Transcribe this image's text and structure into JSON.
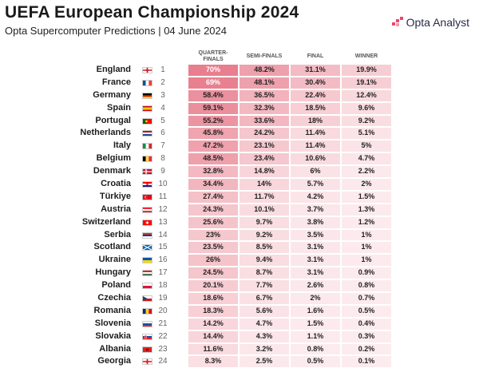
{
  "header": {
    "title": "UEFA European Championship 2024",
    "subtitle": "Opta Supercomputer Predictions | 04 June 2024",
    "brand": "Opta Analyst"
  },
  "colors": {
    "cell_max": "#e87e8e",
    "cell_min": "#fcecee",
    "text_light": "#ffffff",
    "text_dark": "#222222"
  },
  "chart_data": {
    "type": "table",
    "columns": [
      "QUARTER-FINALS",
      "SEMI-FINALS",
      "FINAL",
      "WINNER"
    ],
    "rows": [
      {
        "team": "England",
        "rank": "1",
        "flag": "england",
        "values": [
          "70%",
          "48.2%",
          "31.1%",
          "19.9%"
        ]
      },
      {
        "team": "France",
        "rank": "2",
        "flag": "france",
        "values": [
          "69%",
          "48.1%",
          "30.4%",
          "19.1%"
        ]
      },
      {
        "team": "Germany",
        "rank": "3",
        "flag": "germany",
        "values": [
          "58.4%",
          "36.5%",
          "22.4%",
          "12.4%"
        ]
      },
      {
        "team": "Spain",
        "rank": "4",
        "flag": "spain",
        "values": [
          "59.1%",
          "32.3%",
          "18.5%",
          "9.6%"
        ]
      },
      {
        "team": "Portugal",
        "rank": "5",
        "flag": "portugal",
        "values": [
          "55.2%",
          "33.6%",
          "18%",
          "9.2%"
        ]
      },
      {
        "team": "Netherlands",
        "rank": "6",
        "flag": "netherlands",
        "values": [
          "45.8%",
          "24.2%",
          "11.4%",
          "5.1%"
        ]
      },
      {
        "team": "Italy",
        "rank": "7",
        "flag": "italy",
        "values": [
          "47.2%",
          "23.1%",
          "11.4%",
          "5%"
        ]
      },
      {
        "team": "Belgium",
        "rank": "8",
        "flag": "belgium",
        "values": [
          "48.5%",
          "23.4%",
          "10.6%",
          "4.7%"
        ]
      },
      {
        "team": "Denmark",
        "rank": "9",
        "flag": "denmark",
        "values": [
          "32.8%",
          "14.8%",
          "6%",
          "2.2%"
        ]
      },
      {
        "team": "Croatia",
        "rank": "10",
        "flag": "croatia",
        "values": [
          "34.4%",
          "14%",
          "5.7%",
          "2%"
        ]
      },
      {
        "team": "Türkiye",
        "rank": "11",
        "flag": "turkiye",
        "values": [
          "27.4%",
          "11.7%",
          "4.2%",
          "1.5%"
        ]
      },
      {
        "team": "Austria",
        "rank": "12",
        "flag": "austria",
        "values": [
          "24.3%",
          "10.1%",
          "3.7%",
          "1.3%"
        ]
      },
      {
        "team": "Switzerland",
        "rank": "13",
        "flag": "switzerland",
        "values": [
          "25.6%",
          "9.7%",
          "3.8%",
          "1.2%"
        ]
      },
      {
        "team": "Serbia",
        "rank": "14",
        "flag": "serbia",
        "values": [
          "23%",
          "9.2%",
          "3.5%",
          "1%"
        ]
      },
      {
        "team": "Scotland",
        "rank": "15",
        "flag": "scotland",
        "values": [
          "23.5%",
          "8.5%",
          "3.1%",
          "1%"
        ]
      },
      {
        "team": "Ukraine",
        "rank": "16",
        "flag": "ukraine",
        "values": [
          "26%",
          "9.4%",
          "3.1%",
          "1%"
        ]
      },
      {
        "team": "Hungary",
        "rank": "17",
        "flag": "hungary",
        "values": [
          "24.5%",
          "8.7%",
          "3.1%",
          "0.9%"
        ]
      },
      {
        "team": "Poland",
        "rank": "18",
        "flag": "poland",
        "values": [
          "20.1%",
          "7.7%",
          "2.6%",
          "0.8%"
        ]
      },
      {
        "team": "Czechia",
        "rank": "19",
        "flag": "czechia",
        "values": [
          "18.6%",
          "6.7%",
          "2%",
          "0.7%"
        ]
      },
      {
        "team": "Romania",
        "rank": "20",
        "flag": "romania",
        "values": [
          "18.3%",
          "5.6%",
          "1.6%",
          "0.5%"
        ]
      },
      {
        "team": "Slovenia",
        "rank": "21",
        "flag": "slovenia",
        "values": [
          "14.2%",
          "4.7%",
          "1.5%",
          "0.4%"
        ]
      },
      {
        "team": "Slovakia",
        "rank": "22",
        "flag": "slovakia",
        "values": [
          "14.4%",
          "4.3%",
          "1.1%",
          "0.3%"
        ]
      },
      {
        "team": "Albania",
        "rank": "23",
        "flag": "albania",
        "values": [
          "11.6%",
          "3.2%",
          "0.8%",
          "0.2%"
        ]
      },
      {
        "team": "Georgia",
        "rank": "24",
        "flag": "georgia",
        "values": [
          "8.3%",
          "2.5%",
          "0.5%",
          "0.1%"
        ]
      }
    ]
  }
}
